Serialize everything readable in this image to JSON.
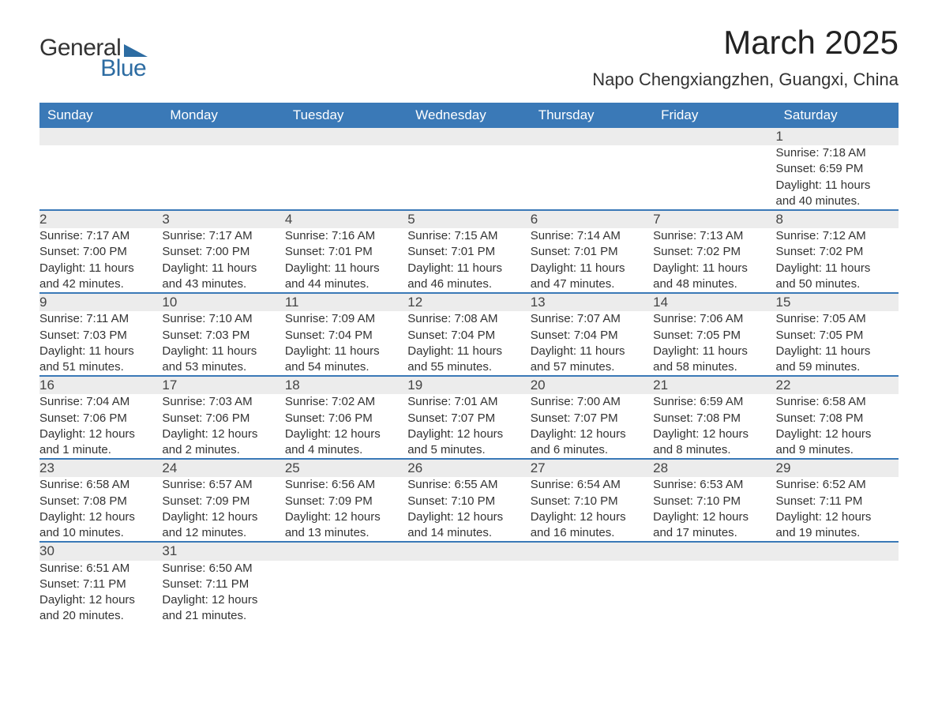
{
  "logo": {
    "general": "General",
    "blue": "Blue",
    "tri_color": "#2d6ca2"
  },
  "title": "March 2025",
  "subtitle": "Napo Chengxiangzhen, Guangxi, China",
  "colors": {
    "header_bg": "#3a79b7",
    "header_text": "#ffffff",
    "daynum_bg": "#ececec",
    "row_border": "#3a79b7",
    "body_text": "#333333",
    "page_bg": "#ffffff"
  },
  "typography": {
    "title_fontsize": 42,
    "subtitle_fontsize": 22,
    "dayheader_fontsize": 17,
    "body_fontsize": 15,
    "font_family": "Arial"
  },
  "day_headers": [
    "Sunday",
    "Monday",
    "Tuesday",
    "Wednesday",
    "Thursday",
    "Friday",
    "Saturday"
  ],
  "weeks": [
    [
      null,
      null,
      null,
      null,
      null,
      null,
      {
        "n": "1",
        "sr": "Sunrise: 7:18 AM",
        "ss": "Sunset: 6:59 PM",
        "d1": "Daylight: 11 hours",
        "d2": "and 40 minutes."
      }
    ],
    [
      {
        "n": "2",
        "sr": "Sunrise: 7:17 AM",
        "ss": "Sunset: 7:00 PM",
        "d1": "Daylight: 11 hours",
        "d2": "and 42 minutes."
      },
      {
        "n": "3",
        "sr": "Sunrise: 7:17 AM",
        "ss": "Sunset: 7:00 PM",
        "d1": "Daylight: 11 hours",
        "d2": "and 43 minutes."
      },
      {
        "n": "4",
        "sr": "Sunrise: 7:16 AM",
        "ss": "Sunset: 7:01 PM",
        "d1": "Daylight: 11 hours",
        "d2": "and 44 minutes."
      },
      {
        "n": "5",
        "sr": "Sunrise: 7:15 AM",
        "ss": "Sunset: 7:01 PM",
        "d1": "Daylight: 11 hours",
        "d2": "and 46 minutes."
      },
      {
        "n": "6",
        "sr": "Sunrise: 7:14 AM",
        "ss": "Sunset: 7:01 PM",
        "d1": "Daylight: 11 hours",
        "d2": "and 47 minutes."
      },
      {
        "n": "7",
        "sr": "Sunrise: 7:13 AM",
        "ss": "Sunset: 7:02 PM",
        "d1": "Daylight: 11 hours",
        "d2": "and 48 minutes."
      },
      {
        "n": "8",
        "sr": "Sunrise: 7:12 AM",
        "ss": "Sunset: 7:02 PM",
        "d1": "Daylight: 11 hours",
        "d2": "and 50 minutes."
      }
    ],
    [
      {
        "n": "9",
        "sr": "Sunrise: 7:11 AM",
        "ss": "Sunset: 7:03 PM",
        "d1": "Daylight: 11 hours",
        "d2": "and 51 minutes."
      },
      {
        "n": "10",
        "sr": "Sunrise: 7:10 AM",
        "ss": "Sunset: 7:03 PM",
        "d1": "Daylight: 11 hours",
        "d2": "and 53 minutes."
      },
      {
        "n": "11",
        "sr": "Sunrise: 7:09 AM",
        "ss": "Sunset: 7:04 PM",
        "d1": "Daylight: 11 hours",
        "d2": "and 54 minutes."
      },
      {
        "n": "12",
        "sr": "Sunrise: 7:08 AM",
        "ss": "Sunset: 7:04 PM",
        "d1": "Daylight: 11 hours",
        "d2": "and 55 minutes."
      },
      {
        "n": "13",
        "sr": "Sunrise: 7:07 AM",
        "ss": "Sunset: 7:04 PM",
        "d1": "Daylight: 11 hours",
        "d2": "and 57 minutes."
      },
      {
        "n": "14",
        "sr": "Sunrise: 7:06 AM",
        "ss": "Sunset: 7:05 PM",
        "d1": "Daylight: 11 hours",
        "d2": "and 58 minutes."
      },
      {
        "n": "15",
        "sr": "Sunrise: 7:05 AM",
        "ss": "Sunset: 7:05 PM",
        "d1": "Daylight: 11 hours",
        "d2": "and 59 minutes."
      }
    ],
    [
      {
        "n": "16",
        "sr": "Sunrise: 7:04 AM",
        "ss": "Sunset: 7:06 PM",
        "d1": "Daylight: 12 hours",
        "d2": "and 1 minute."
      },
      {
        "n": "17",
        "sr": "Sunrise: 7:03 AM",
        "ss": "Sunset: 7:06 PM",
        "d1": "Daylight: 12 hours",
        "d2": "and 2 minutes."
      },
      {
        "n": "18",
        "sr": "Sunrise: 7:02 AM",
        "ss": "Sunset: 7:06 PM",
        "d1": "Daylight: 12 hours",
        "d2": "and 4 minutes."
      },
      {
        "n": "19",
        "sr": "Sunrise: 7:01 AM",
        "ss": "Sunset: 7:07 PM",
        "d1": "Daylight: 12 hours",
        "d2": "and 5 minutes."
      },
      {
        "n": "20",
        "sr": "Sunrise: 7:00 AM",
        "ss": "Sunset: 7:07 PM",
        "d1": "Daylight: 12 hours",
        "d2": "and 6 minutes."
      },
      {
        "n": "21",
        "sr": "Sunrise: 6:59 AM",
        "ss": "Sunset: 7:08 PM",
        "d1": "Daylight: 12 hours",
        "d2": "and 8 minutes."
      },
      {
        "n": "22",
        "sr": "Sunrise: 6:58 AM",
        "ss": "Sunset: 7:08 PM",
        "d1": "Daylight: 12 hours",
        "d2": "and 9 minutes."
      }
    ],
    [
      {
        "n": "23",
        "sr": "Sunrise: 6:58 AM",
        "ss": "Sunset: 7:08 PM",
        "d1": "Daylight: 12 hours",
        "d2": "and 10 minutes."
      },
      {
        "n": "24",
        "sr": "Sunrise: 6:57 AM",
        "ss": "Sunset: 7:09 PM",
        "d1": "Daylight: 12 hours",
        "d2": "and 12 minutes."
      },
      {
        "n": "25",
        "sr": "Sunrise: 6:56 AM",
        "ss": "Sunset: 7:09 PM",
        "d1": "Daylight: 12 hours",
        "d2": "and 13 minutes."
      },
      {
        "n": "26",
        "sr": "Sunrise: 6:55 AM",
        "ss": "Sunset: 7:10 PM",
        "d1": "Daylight: 12 hours",
        "d2": "and 14 minutes."
      },
      {
        "n": "27",
        "sr": "Sunrise: 6:54 AM",
        "ss": "Sunset: 7:10 PM",
        "d1": "Daylight: 12 hours",
        "d2": "and 16 minutes."
      },
      {
        "n": "28",
        "sr": "Sunrise: 6:53 AM",
        "ss": "Sunset: 7:10 PM",
        "d1": "Daylight: 12 hours",
        "d2": "and 17 minutes."
      },
      {
        "n": "29",
        "sr": "Sunrise: 6:52 AM",
        "ss": "Sunset: 7:11 PM",
        "d1": "Daylight: 12 hours",
        "d2": "and 19 minutes."
      }
    ],
    [
      {
        "n": "30",
        "sr": "Sunrise: 6:51 AM",
        "ss": "Sunset: 7:11 PM",
        "d1": "Daylight: 12 hours",
        "d2": "and 20 minutes."
      },
      {
        "n": "31",
        "sr": "Sunrise: 6:50 AM",
        "ss": "Sunset: 7:11 PM",
        "d1": "Daylight: 12 hours",
        "d2": "and 21 minutes."
      },
      null,
      null,
      null,
      null,
      null
    ]
  ]
}
